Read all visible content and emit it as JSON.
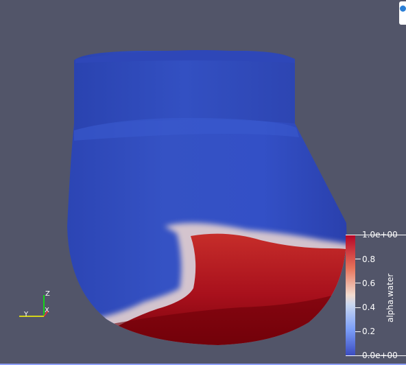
{
  "render_view": {
    "background_color": "#525569",
    "object_shape": "vessel-mesh",
    "colormap": "cool-to-warm"
  },
  "orientation_axes": {
    "x_label": "X",
    "y_label": "Y",
    "z_label": "Z",
    "colors": {
      "x": "#ffff00",
      "y": "#ffff00",
      "z": "#00ff00"
    }
  },
  "color_legend": {
    "title": "alpha.water",
    "range": [
      0,
      1
    ],
    "labels": [
      "1.0e+00",
      "0.8",
      "0.6",
      "0.4",
      "0.2",
      "0.0e+00"
    ]
  },
  "toolbar": {
    "corner_button_icon": "view-toggle-icon"
  }
}
